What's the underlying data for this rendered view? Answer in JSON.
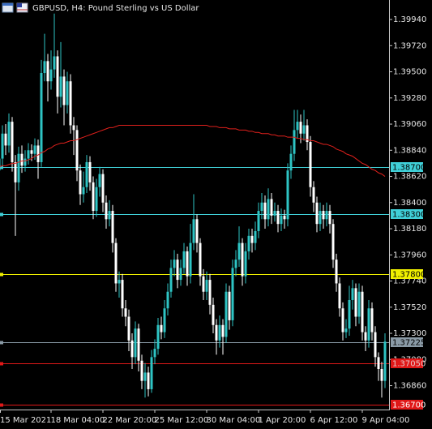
{
  "chart_data": {
    "type": "candlestick",
    "title": "GBPUSD, H4:  Pound Sterling vs US Dollar",
    "categories": [
      "15 Mar 2021",
      null,
      null,
      null,
      null,
      null,
      null,
      null,
      null,
      null,
      null,
      null,
      null,
      null,
      null,
      null,
      "18 Mar 04:00",
      null,
      null,
      null,
      null,
      null,
      null,
      null,
      null,
      null,
      null,
      null,
      null,
      null,
      null,
      null,
      "22 Mar 20:00",
      null,
      null,
      null,
      null,
      null,
      null,
      null,
      null,
      null,
      null,
      null,
      null,
      null,
      null,
      null,
      "25 Mar 12:00",
      null,
      null,
      null,
      null,
      null,
      null,
      null,
      null,
      null,
      null,
      null,
      null,
      null,
      null,
      null,
      "30 Mar 04:00",
      null,
      null,
      null,
      null,
      null,
      null,
      null,
      null,
      null,
      null,
      null,
      null,
      null,
      null,
      null,
      "1 Apr 20:00",
      null,
      null,
      null,
      null,
      null,
      null,
      null,
      null,
      null,
      null,
      null,
      null,
      null,
      null,
      null,
      "6 Apr 12:00",
      null,
      null,
      null,
      null,
      null,
      null,
      null,
      null,
      null,
      null,
      null,
      null,
      null,
      null,
      null,
      "9 Apr 04:00",
      null,
      null,
      null,
      null,
      null,
      null,
      null
    ],
    "open": [
      1.3867,
      1.3877,
      1.3898,
      1.3888,
      1.3908,
      1.3874,
      1.3857,
      1.3881,
      1.3871,
      1.3877,
      1.3884,
      1.3881,
      1.3888,
      1.3874,
      1.3949,
      1.3959,
      1.3942,
      1.3952,
      1.3963,
      1.3929,
      1.3946,
      1.3922,
      1.3942,
      1.3905,
      1.3901,
      1.3867,
      1.3847,
      1.3853,
      1.3874,
      1.3857,
      1.3833,
      1.3853,
      1.3864,
      1.384,
      1.3826,
      1.3833,
      1.3806,
      1.3772,
      1.3775,
      1.3751,
      1.3744,
      1.3724,
      1.371,
      1.3734,
      1.3707,
      1.369,
      1.3697,
      1.3683,
      1.371,
      1.3717,
      1.3737,
      1.3731,
      1.3751,
      1.3765,
      1.3785,
      1.3792,
      1.3775,
      1.3785,
      1.3799,
      1.3778,
      1.3806,
      1.3826,
      1.3806,
      1.3778,
      1.3765,
      1.3775,
      1.3754,
      1.3737,
      1.3724,
      1.3737,
      1.3727,
      1.3765,
      1.3741,
      1.3785,
      1.3792,
      1.3806,
      1.3778,
      1.3799,
      1.3812,
      1.3806,
      1.3816,
      1.3833,
      1.384,
      1.3826,
      1.3843,
      1.3829,
      1.3833,
      1.3822,
      1.3829,
      1.3826,
      1.3867,
      1.3881,
      1.3901,
      1.3908,
      1.3898,
      1.3905,
      1.3891,
      1.3853,
      1.384,
      1.3822,
      1.3833,
      1.3826,
      1.3833,
      1.3822,
      1.3792,
      1.3772,
      1.3751,
      1.3731,
      1.3734,
      1.3758,
      1.3768,
      1.3744,
      1.3765,
      1.3731,
      1.3724,
      1.3751,
      1.3731,
      1.371,
      1.37,
      1.369
    ],
    "high": [
      1.3932,
      1.3905,
      1.3906,
      1.3915,
      1.3912,
      1.388,
      1.3887,
      1.3888,
      1.3884,
      1.389,
      1.3889,
      1.3894,
      1.3893,
      1.396,
      1.3982,
      1.3965,
      1.3968,
      1.3999,
      1.3968,
      1.3975,
      1.3952,
      1.395,
      1.3948,
      1.3912,
      1.3905,
      1.3872,
      1.3866,
      1.388,
      1.3879,
      1.3862,
      1.386,
      1.387,
      1.3868,
      1.3846,
      1.3842,
      1.3838,
      1.381,
      1.3782,
      1.378,
      1.3758,
      1.375,
      1.373,
      1.374,
      1.3738,
      1.3712,
      1.3705,
      1.3702,
      1.3716,
      1.3725,
      1.3743,
      1.3744,
      1.3758,
      1.3772,
      1.3792,
      1.38,
      1.3797,
      1.3792,
      1.3806,
      1.3803,
      1.3822,
      1.3847,
      1.383,
      1.381,
      1.3784,
      1.3782,
      1.378,
      1.376,
      1.3742,
      1.3745,
      1.3742,
      1.3772,
      1.377,
      1.3792,
      1.38,
      1.382,
      1.381,
      1.3806,
      1.3818,
      1.3818,
      1.3824,
      1.384,
      1.3848,
      1.3846,
      1.3852,
      1.3848,
      1.384,
      1.3838,
      1.3835,
      1.3834,
      1.3873,
      1.3888,
      1.3918,
      1.3918,
      1.3914,
      1.3918,
      1.391,
      1.3896,
      1.3858,
      1.3845,
      1.384,
      1.3838,
      1.384,
      1.3838,
      1.3826,
      1.3797,
      1.3777,
      1.3756,
      1.3742,
      1.377,
      1.3775,
      1.3772,
      1.3772,
      1.377,
      1.3736,
      1.3758,
      1.3756,
      1.3736,
      1.3714,
      1.3706,
      1.373
    ],
    "low": [
      1.386,
      1.387,
      1.388,
      1.3882,
      1.3866,
      1.3812,
      1.385,
      1.3865,
      1.3866,
      1.3872,
      1.3875,
      1.3876,
      1.386,
      1.387,
      1.3942,
      1.3925,
      1.3935,
      1.3945,
      1.3915,
      1.392,
      1.3905,
      1.3915,
      1.3898,
      1.388,
      1.3858,
      1.3838,
      1.384,
      1.3848,
      1.385,
      1.3826,
      1.3828,
      1.3845,
      1.3832,
      1.3818,
      1.382,
      1.3798,
      1.3765,
      1.376,
      1.3744,
      1.3736,
      1.3715,
      1.37,
      1.3704,
      1.3698,
      1.3683,
      1.3676,
      1.3677,
      1.368,
      1.3704,
      1.3712,
      1.3725,
      1.3726,
      1.3745,
      1.376,
      1.3778,
      1.3768,
      1.377,
      1.378,
      1.377,
      1.3772,
      1.38,
      1.3798,
      1.377,
      1.3758,
      1.3758,
      1.3746,
      1.373,
      1.3712,
      1.3718,
      1.3712,
      1.3722,
      1.3733,
      1.3736,
      1.3778,
      1.3786,
      1.377,
      1.3772,
      1.3792,
      1.3798,
      1.38,
      1.381,
      1.3826,
      1.3818,
      1.382,
      1.3822,
      1.3824,
      1.3815,
      1.3816,
      1.3818,
      1.382,
      1.386,
      1.3875,
      1.3894,
      1.389,
      1.3892,
      1.3884,
      1.3845,
      1.3832,
      1.3815,
      1.3816,
      1.3818,
      1.382,
      1.3814,
      1.3785,
      1.3765,
      1.3744,
      1.3724,
      1.3726,
      1.3728,
      1.375,
      1.3736,
      1.3738,
      1.3724,
      1.3715,
      1.3718,
      1.3724,
      1.3702,
      1.369,
      1.3676,
      1.3684
    ],
    "close": [
      1.3877,
      1.3898,
      1.3888,
      1.3908,
      1.3874,
      1.3857,
      1.3881,
      1.3871,
      1.3877,
      1.3884,
      1.3881,
      1.3888,
      1.3874,
      1.3949,
      1.3959,
      1.3942,
      1.3952,
      1.3963,
      1.3929,
      1.3946,
      1.3922,
      1.3942,
      1.3905,
      1.3901,
      1.3867,
      1.3847,
      1.3853,
      1.3874,
      1.3857,
      1.3833,
      1.3853,
      1.3864,
      1.384,
      1.3826,
      1.3833,
      1.3806,
      1.3772,
      1.3775,
      1.3751,
      1.3744,
      1.3724,
      1.371,
      1.3734,
      1.3707,
      1.369,
      1.3697,
      1.3683,
      1.371,
      1.3717,
      1.3737,
      1.3731,
      1.3751,
      1.3765,
      1.3785,
      1.3792,
      1.3775,
      1.3785,
      1.3799,
      1.3778,
      1.3806,
      1.3826,
      1.3806,
      1.3778,
      1.3765,
      1.3775,
      1.3754,
      1.3737,
      1.3724,
      1.3737,
      1.3727,
      1.3765,
      1.3741,
      1.3785,
      1.3792,
      1.3806,
      1.3778,
      1.3799,
      1.3812,
      1.3806,
      1.3816,
      1.3833,
      1.384,
      1.3826,
      1.3843,
      1.3829,
      1.3833,
      1.3822,
      1.3829,
      1.3826,
      1.3867,
      1.3881,
      1.3901,
      1.3908,
      1.3898,
      1.3905,
      1.3891,
      1.3853,
      1.384,
      1.3822,
      1.3833,
      1.3826,
      1.3833,
      1.3822,
      1.3792,
      1.3772,
      1.3751,
      1.3731,
      1.3734,
      1.3758,
      1.3768,
      1.3744,
      1.3765,
      1.3731,
      1.3724,
      1.3751,
      1.3731,
      1.371,
      1.37,
      1.369,
      1.3723
    ],
    "up_color": "#2ec4c4",
    "down_color": "#ffffff",
    "ma": {
      "color": "#e0201c",
      "values": [
        1.387,
        1.3871,
        1.3871,
        1.3872,
        1.3873,
        1.3873,
        1.3874,
        1.3875,
        1.3875,
        1.3876,
        1.3877,
        1.3879,
        1.388,
        1.3882,
        1.3883,
        1.3885,
        1.3886,
        1.3888,
        1.3889,
        1.389,
        1.389,
        1.3891,
        1.3892,
        1.3892,
        1.3893,
        1.3894,
        1.3895,
        1.3896,
        1.3897,
        1.3898,
        1.3899,
        1.39,
        1.3901,
        1.3902,
        1.3903,
        1.3903,
        1.3904,
        1.3905,
        1.3905,
        1.3905,
        1.3905,
        1.3905,
        1.3905,
        1.3905,
        1.3905,
        1.3905,
        1.3905,
        1.3905,
        1.3905,
        1.3905,
        1.3905,
        1.3905,
        1.3905,
        1.3905,
        1.3905,
        1.3905,
        1.3905,
        1.3905,
        1.3905,
        1.3905,
        1.3905,
        1.3905,
        1.3905,
        1.3905,
        1.3905,
        1.3904,
        1.3904,
        1.3904,
        1.3903,
        1.3903,
        1.3903,
        1.3902,
        1.3902,
        1.3902,
        1.3901,
        1.3901,
        1.3901,
        1.39,
        1.39,
        1.3899,
        1.3899,
        1.3898,
        1.3898,
        1.3898,
        1.3897,
        1.3897,
        1.3896,
        1.3896,
        1.3896,
        1.3895,
        1.3895,
        1.3895,
        1.3894,
        1.3894,
        1.3893,
        1.3893,
        1.3892,
        1.3892,
        1.3891,
        1.389,
        1.3889,
        1.3889,
        1.3888,
        1.3887,
        1.3885,
        1.3884,
        1.3883,
        1.3881,
        1.388,
        1.3879,
        1.3877,
        1.3875,
        1.3873,
        1.3872,
        1.387,
        1.3868,
        1.3867,
        1.3865,
        1.3864,
        1.3862
      ]
    },
    "ylim": [
      1.36659,
      1.40104
    ],
    "yticks": [
      {
        "value": 1.3994,
        "label": "1.39940"
      },
      {
        "value": 1.3972,
        "label": "1.39720"
      },
      {
        "value": 1.395,
        "label": "1.39500"
      },
      {
        "value": 1.3928,
        "label": "1.39280"
      },
      {
        "value": 1.3906,
        "label": "1.39060"
      },
      {
        "value": 1.3884,
        "label": "1.38840"
      },
      {
        "value": 1.3862,
        "label": "1.38620"
      },
      {
        "value": 1.384,
        "label": "1.38400"
      },
      {
        "value": 1.3818,
        "label": "1.38180"
      },
      {
        "value": 1.3796,
        "label": "1.37960"
      },
      {
        "value": 1.3774,
        "label": "1.37740"
      },
      {
        "value": 1.3752,
        "label": "1.37520"
      },
      {
        "value": 1.373,
        "label": "1.37300"
      },
      {
        "value": 1.3708,
        "label": "1.37080"
      },
      {
        "value": 1.3686,
        "label": "1.36860"
      }
    ],
    "hlines": [
      {
        "value": 1.387,
        "label": "1.38700",
        "color": "#40d0d8",
        "text_color": "#000000"
      },
      {
        "value": 1.383,
        "label": "1.38300",
        "color": "#40d0d8",
        "text_color": "#000000"
      },
      {
        "value": 1.378,
        "label": "1.37800",
        "color": "#f0f000",
        "text_color": "#000000"
      },
      {
        "value": 1.37225,
        "label": "1.37225",
        "color": "#8a9aa6",
        "text_color": "#000000"
      },
      {
        "value": 1.3705,
        "label": "1.37050",
        "color": "#e01818",
        "text_color": "#e8c8c8"
      },
      {
        "value": 1.367,
        "label": "1.36700",
        "color": "#e01818",
        "text_color": "#ffffff"
      }
    ]
  }
}
